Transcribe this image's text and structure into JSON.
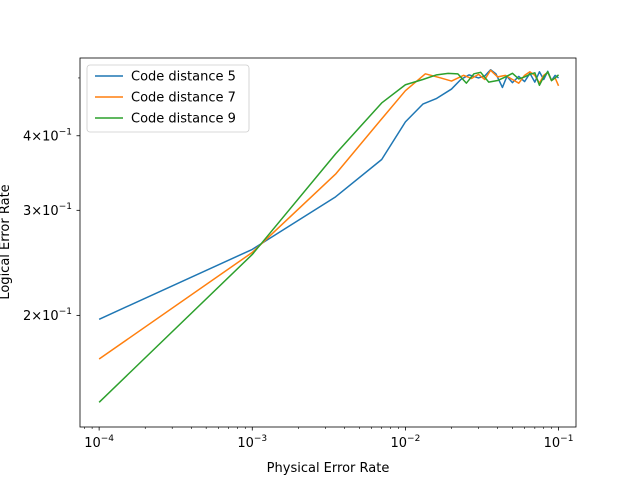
{
  "chart_data": {
    "type": "line",
    "title": "",
    "xlabel": "Physical Error Rate",
    "ylabel": "Logical Error Rate",
    "xscale": "log",
    "yscale": "log",
    "xlim": [
      7.5e-05,
      0.13
    ],
    "ylim": [
      0.13,
      0.54
    ],
    "grid": false,
    "legend_position": "top-left",
    "x_ticks": [
      {
        "value": 0.0001,
        "base": "10",
        "exp": "−4"
      },
      {
        "value": 0.001,
        "base": "10",
        "exp": "−3"
      },
      {
        "value": 0.01,
        "base": "10",
        "exp": "−2"
      },
      {
        "value": 0.1,
        "base": "10",
        "exp": "−1"
      }
    ],
    "y_ticks": [
      {
        "value": 0.2,
        "mant": "2",
        "base": "10",
        "exp": "−1"
      },
      {
        "value": 0.3,
        "mant": "3",
        "base": "10",
        "exp": "−1"
      },
      {
        "value": 0.4,
        "mant": "4",
        "base": "10",
        "exp": "−1"
      }
    ],
    "series": [
      {
        "name": "Code distance 5",
        "color": "#1f77b4",
        "x": [
          0.0001,
          0.001,
          0.0035,
          0.007,
          0.01,
          0.013,
          0.016,
          0.02,
          0.023,
          0.026,
          0.03,
          0.033,
          0.036,
          0.039,
          0.043,
          0.046,
          0.05,
          0.055,
          0.06,
          0.065,
          0.07,
          0.075,
          0.08,
          0.085,
          0.09,
          0.095,
          0.1
        ],
        "y": [
          0.197,
          0.258,
          0.316,
          0.365,
          0.422,
          0.452,
          0.462,
          0.479,
          0.497,
          0.506,
          0.5,
          0.504,
          0.516,
          0.508,
          0.482,
          0.503,
          0.491,
          0.503,
          0.493,
          0.509,
          0.492,
          0.512,
          0.497,
          0.513,
          0.495,
          0.505,
          0.5
        ]
      },
      {
        "name": "Code distance 7",
        "color": "#ff7f0e",
        "x": [
          0.0001,
          0.001,
          0.0035,
          0.007,
          0.01,
          0.0135,
          0.017,
          0.02,
          0.024,
          0.027,
          0.03,
          0.033,
          0.036,
          0.04,
          0.045,
          0.05,
          0.055,
          0.06,
          0.065,
          0.07,
          0.075,
          0.08,
          0.085,
          0.09,
          0.095,
          0.1
        ],
        "y": [
          0.169,
          0.255,
          0.345,
          0.427,
          0.476,
          0.508,
          0.5,
          0.494,
          0.505,
          0.499,
          0.507,
          0.497,
          0.515,
          0.502,
          0.505,
          0.497,
          0.49,
          0.505,
          0.512,
          0.505,
          0.49,
          0.505,
          0.511,
          0.495,
          0.5,
          0.485
        ]
      },
      {
        "name": "Code distance 9",
        "color": "#2ca02c",
        "x": [
          0.0001,
          0.001,
          0.0035,
          0.007,
          0.01,
          0.013,
          0.016,
          0.019,
          0.022,
          0.025,
          0.028,
          0.031,
          0.035,
          0.04,
          0.045,
          0.05,
          0.055,
          0.06,
          0.065,
          0.07,
          0.075,
          0.08,
          0.085,
          0.09,
          0.095,
          0.1
        ],
        "y": [
          0.143,
          0.253,
          0.373,
          0.454,
          0.487,
          0.497,
          0.506,
          0.509,
          0.508,
          0.49,
          0.508,
          0.511,
          0.492,
          0.495,
          0.502,
          0.509,
          0.498,
          0.502,
          0.507,
          0.51,
          0.486,
          0.502,
          0.512,
          0.495,
          0.5,
          0.506
        ]
      }
    ]
  }
}
